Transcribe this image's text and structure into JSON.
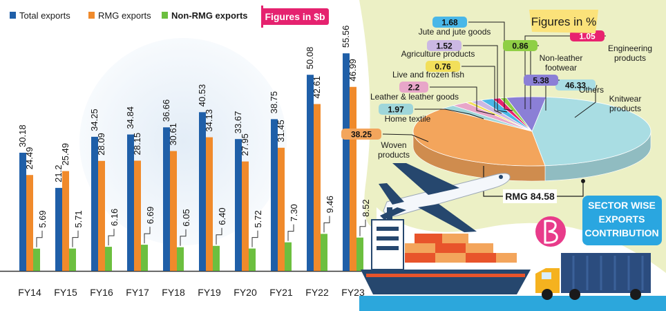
{
  "chart_data": [
    {
      "type": "bar",
      "unit_label": "Figures in $b",
      "categories": [
        "FY14",
        "FY15",
        "FY16",
        "FY17",
        "FY18",
        "FY19",
        "FY20",
        "FY21",
        "FY22",
        "FY23"
      ],
      "ylim": [
        0,
        60
      ],
      "grid": false,
      "legend_position": "top-left",
      "series": [
        {
          "name": "Total exports",
          "color": "#1f5fa8",
          "values": [
            30.18,
            21.2,
            34.25,
            34.84,
            36.66,
            40.53,
            33.67,
            38.75,
            50.08,
            55.56
          ],
          "labels": [
            "30.18",
            "21.2",
            "34.25",
            "34.84",
            "36.66",
            "40.53",
            "33.67",
            "38.75",
            "50.08",
            "55.56"
          ]
        },
        {
          "name": "RMG exports",
          "color": "#f08a2b",
          "values": [
            24.49,
            25.49,
            28.09,
            28.15,
            30.61,
            34.13,
            27.95,
            31.45,
            42.61,
            46.99
          ],
          "labels": [
            "24.49",
            "25.49",
            "28.09",
            "28.15",
            "30.61",
            "34.13",
            "27.95",
            "31.45",
            "42.61",
            "46.99"
          ]
        },
        {
          "name": "Non-RMG exports",
          "color": "#6cbf3f",
          "values": [
            5.69,
            5.71,
            6.16,
            6.69,
            6.05,
            6.4,
            5.72,
            7.3,
            9.46,
            8.52
          ],
          "labels": [
            "5.69",
            "5.71",
            "6.16",
            "6.69",
            "6.05",
            "6.40",
            "5.72",
            "7.30",
            "9.46",
            "8.52"
          ]
        }
      ]
    },
    {
      "type": "pie",
      "unit_label": "Figures in %",
      "title": "SECTOR WISE EXPORTS CONTRIBUTION",
      "total_label": "RMG 84.58",
      "slices": [
        {
          "label": "Knitwear products",
          "value": 46.33,
          "value_label": "46.33",
          "color": "#a9dde3"
        },
        {
          "label": "Woven products",
          "value": 38.25,
          "value_label": "38.25",
          "color": "#f3a55c"
        },
        {
          "label": "Home textile",
          "value": 1.97,
          "value_label": "1.97",
          "color": "#9fd6da"
        },
        {
          "label": "Leather & leather goods",
          "value": 2.2,
          "value_label": "2.2",
          "color": "#e8a6c9"
        },
        {
          "label": "Live and frozen fish",
          "value": 0.76,
          "value_label": "0.76",
          "color": "#f2df5a"
        },
        {
          "label": "Agriculture products",
          "value": 1.52,
          "value_label": "1.52",
          "color": "#cbb8e3"
        },
        {
          "label": "Jute and jute goods",
          "value": 1.68,
          "value_label": "1.68",
          "color": "#49b7e8"
        },
        {
          "label": "Engineering products",
          "value": 1.05,
          "value_label": "1.05",
          "color": "#e8236f"
        },
        {
          "label": "Non-leather footwear",
          "value": 0.86,
          "value_label": "0.86",
          "color": "#8fcf45"
        },
        {
          "label": "Others",
          "value": 5.38,
          "value_label": "5.38",
          "color": "#8b7fd6"
        }
      ]
    }
  ]
}
